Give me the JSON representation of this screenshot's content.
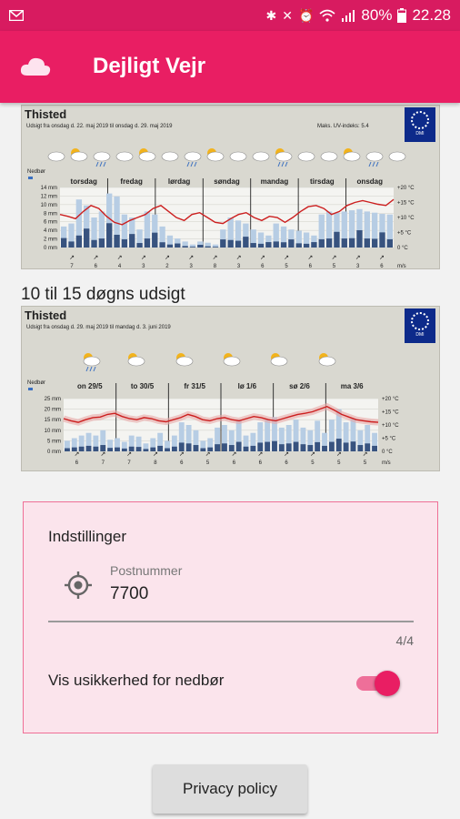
{
  "statusbar": {
    "battery": "80%",
    "time": "22.28",
    "icons": [
      "mail-icon",
      "bluetooth-icon",
      "mute-icon",
      "alarm-icon",
      "wifi-icon",
      "signal-icon",
      "battery-icon"
    ]
  },
  "appbar": {
    "title": "Dejligt Vejr",
    "icon": "cloud-icon"
  },
  "forecast_short": {
    "city": "Thisted",
    "period": "Udsigt fra onsdag d. 22. maj 2019 til onsdag d. 29. maj 2019",
    "uv": "Maks. UV-indeks: 5.4",
    "logo_text": "DMI",
    "precip_label": "Nedbør",
    "days": [
      "torsdag",
      "fredag",
      "lørdag",
      "søndag",
      "mandag",
      "tirsdag",
      "onsdag"
    ],
    "left_ticks": [
      "14 mm",
      "12 mm",
      "10 mm",
      "8 mm",
      "6 mm",
      "4 mm",
      "2 mm",
      "0 mm"
    ],
    "right_ticks": [
      "+20 °C",
      "+15 °C",
      "+10 °C",
      "+5 °C",
      "0 °C"
    ],
    "wind": [
      "7",
      "6",
      "4",
      "3",
      "2",
      "3",
      "8",
      "3",
      "6",
      "5",
      "6",
      "5",
      "3",
      "6"
    ],
    "wind_unit": "m/s"
  },
  "section_long_title": "10 til 15 døgns udsigt",
  "forecast_long": {
    "city": "Thisted",
    "period": "Udsigt fra onsdag d. 29. maj 2019 til mandag d. 3. juni 2019",
    "logo_text": "DMI",
    "precip_label": "Nedbør",
    "days": [
      "on 29/5",
      "to 30/5",
      "fr 31/5",
      "lø 1/6",
      "sø 2/6",
      "ma 3/6"
    ],
    "left_ticks": [
      "25 mm",
      "20 mm",
      "15 mm",
      "10 mm",
      "5 mm",
      "0 mm"
    ],
    "right_ticks": [
      "+20 °C",
      "+15 °C",
      "+10 °C",
      "+5 °C",
      "0 °C"
    ],
    "wind": [
      "6",
      "7",
      "7",
      "8",
      "6",
      "5",
      "6",
      "6",
      "6",
      "5",
      "5",
      "5"
    ],
    "wind_unit": "m/s"
  },
  "settings": {
    "header": "Indstillinger",
    "postal_label": "Postnummer",
    "postal_value": "7700",
    "counter": "4/4",
    "toggle_label": "Vis usikkerhed for nedbør",
    "toggle_on": true
  },
  "privacy_button": "Privacy policy",
  "colors": {
    "statusbar": "#d81b60",
    "appbar": "#e91e63",
    "settings_bg": "#fbe4ec",
    "settings_border": "#ef6f96",
    "temp_line": "#cc1f1f",
    "precip_light": "#b7cde4",
    "precip_dark": "#38537f"
  }
}
